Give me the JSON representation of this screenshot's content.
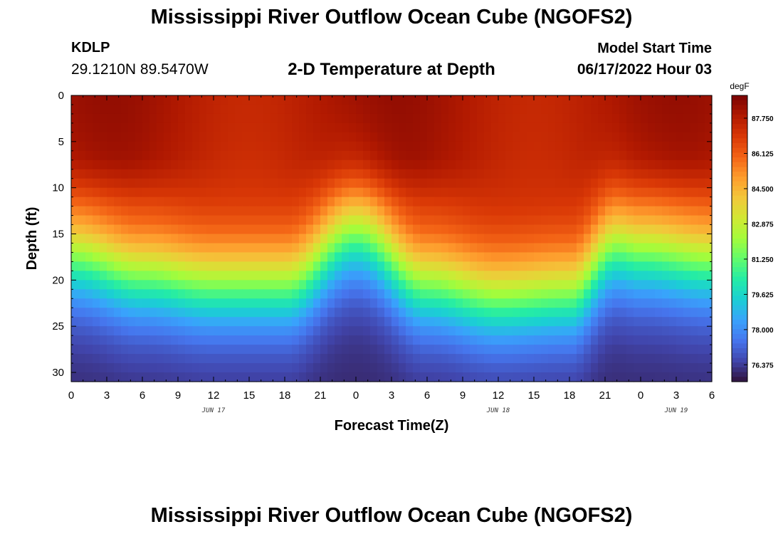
{
  "header": {
    "title": "Mississippi River Outflow Ocean Cube (NGOFS2)",
    "title_repeat": "Mississippi River Outflow Ocean Cube (NGOFS2)",
    "station": "KDLP",
    "coordinates": "29.1210N  89.5470W",
    "subtitle": "2-D Temperature at Depth",
    "model_start_label": "Model Start Time",
    "model_start_value": "06/17/2022 Hour 03"
  },
  "chart_data": {
    "type": "heatmap",
    "xlabel": "Forecast Time(Z)",
    "ylabel": "Depth (ft)",
    "x_range_hours": [
      0,
      54
    ],
    "ylim": [
      0,
      31
    ],
    "x_tick_labels": [
      "0",
      "3",
      "6",
      "9",
      "12",
      "15",
      "18",
      "21",
      "0",
      "3",
      "6",
      "9",
      "12",
      "15",
      "18",
      "21",
      "0",
      "3",
      "6"
    ],
    "x_tick_hours": [
      0,
      3,
      6,
      9,
      12,
      15,
      18,
      21,
      24,
      27,
      30,
      33,
      36,
      39,
      42,
      45,
      48,
      51,
      54
    ],
    "y_ticks": [
      0,
      5,
      10,
      15,
      20,
      25,
      30
    ],
    "date_labels": [
      {
        "text": "JUN 17",
        "hour": 12
      },
      {
        "text": "JUN 18",
        "hour": 36
      },
      {
        "text": "JUN 19",
        "hour": 51
      }
    ],
    "colorbar": {
      "unit": "degF",
      "min": 75.6,
      "max": 88.8,
      "tick_values": [
        76.375,
        78.0,
        79.625,
        81.25,
        82.875,
        84.5,
        86.125,
        87.75
      ],
      "tick_labels": [
        "76.375",
        "78.000",
        "79.625",
        "81.250",
        "82.875",
        "84.500",
        "86.125",
        "87.750"
      ],
      "colors": [
        "#30123b",
        "#4145ab",
        "#4675ed",
        "#39a2fc",
        "#1bcfd4",
        "#24eca6",
        "#61fc6c",
        "#a4fc3b",
        "#d1e834",
        "#f3c63a",
        "#fe9b2d",
        "#f36315",
        "#d93806",
        "#b11901",
        "#7a0403"
      ]
    },
    "thermocline": {
      "depth_at_hours": [
        {
          "hour": 0,
          "depth_ft": 17.5
        },
        {
          "hour": 6,
          "depth_ft": 19.5
        },
        {
          "hour": 12,
          "depth_ft": 20.5
        },
        {
          "hour": 18,
          "depth_ft": 20.5
        },
        {
          "hour": 24,
          "depth_ft": 15.0
        },
        {
          "hour": 30,
          "depth_ft": 20.5
        },
        {
          "hour": 36,
          "depth_ft": 22.0
        },
        {
          "hour": 42,
          "depth_ft": 21.5
        },
        {
          "hour": 46,
          "depth_ft": 16.5
        },
        {
          "hour": 48,
          "depth_ft": 17.0
        },
        {
          "hour": 54,
          "depth_ft": 18.0
        }
      ],
      "surface_temp_degF": 87.5,
      "bottom_temp_degF": 76.0
    }
  }
}
